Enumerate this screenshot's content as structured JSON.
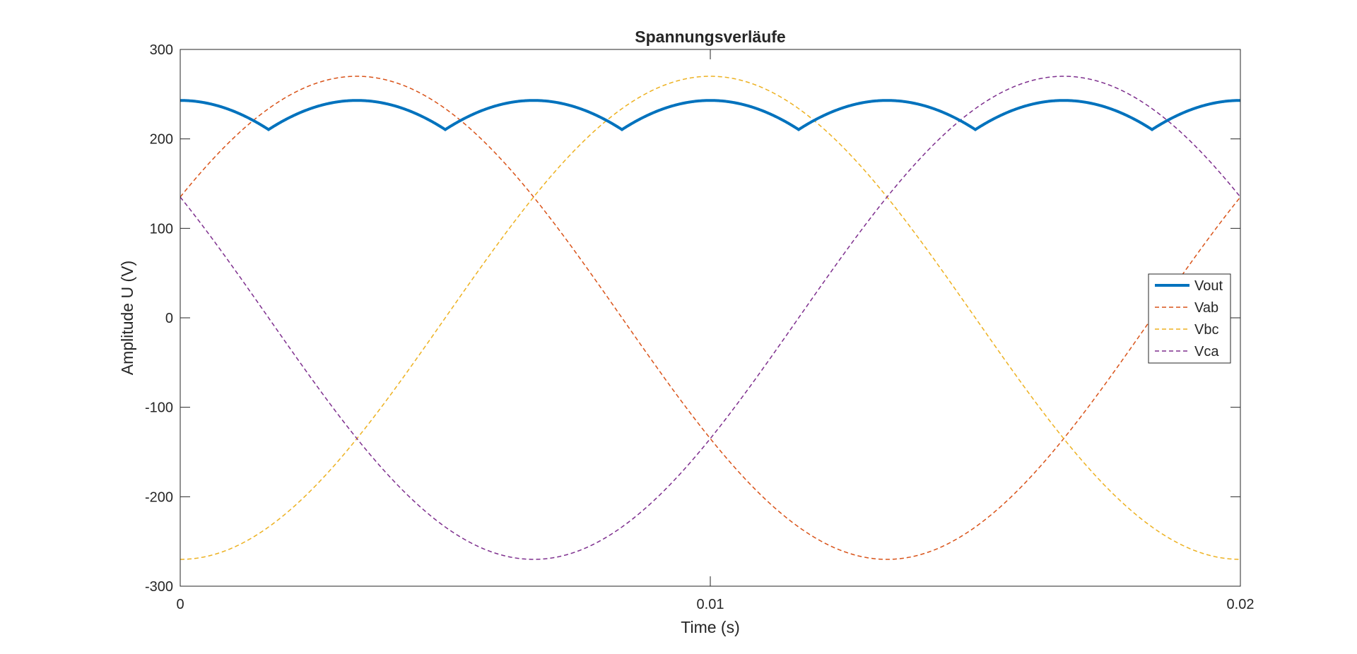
{
  "chart_data": {
    "type": "line",
    "title": "Spannungsverläufe",
    "xlabel": "Time (s)",
    "ylabel": "Amplitude U (V)",
    "xlim": [
      0,
      0.02
    ],
    "ylim": [
      -300,
      300
    ],
    "xticks": [
      0,
      0.01,
      0.02
    ],
    "xtick_labels": [
      "0",
      "0.01",
      "0.02"
    ],
    "yticks": [
      300,
      200,
      100,
      0,
      -100,
      -200,
      -300
    ],
    "ytick_labels": [
      "300",
      "200",
      "100",
      "0",
      "-100",
      "-200",
      "-300"
    ],
    "grid": false,
    "legend_position": "right",
    "series": [
      {
        "name": "Vout",
        "color": "#0072BD",
        "style": "solid",
        "width": "thick",
        "x": [
          0,
          0.000833,
          0.001667,
          0.0025,
          0.003333,
          0.004167,
          0.005,
          0.005833,
          0.006667,
          0.0075,
          0.008333,
          0.009167,
          0.01,
          0.010833,
          0.011667,
          0.0125,
          0.013333,
          0.014167,
          0.015,
          0.015833,
          0.016667,
          0.0175,
          0.018333,
          0.019167,
          0.02
        ],
        "values": [
          236,
          245,
          236,
          245,
          236,
          245,
          236,
          245,
          236,
          245,
          236,
          245,
          236,
          245,
          236,
          245,
          236,
          245,
          236,
          245,
          236,
          245,
          236,
          245,
          236
        ]
      },
      {
        "name": "Vab",
        "color": "#D95319",
        "style": "dashed",
        "width": "thin",
        "x": [
          0,
          0.001667,
          0.003333,
          0.005,
          0.006667,
          0.008333,
          0.01,
          0.011667,
          0.013333,
          0.015,
          0.016667,
          0.018333,
          0.02
        ],
        "values": [
          135,
          234,
          270,
          234,
          135,
          0,
          -135,
          -234,
          -270,
          -234,
          -135,
          0,
          135
        ]
      },
      {
        "name": "Vbc",
        "color": "#EDB120",
        "style": "dashed",
        "width": "thin",
        "x": [
          0,
          0.001667,
          0.003333,
          0.005,
          0.006667,
          0.008333,
          0.01,
          0.011667,
          0.013333,
          0.015,
          0.016667,
          0.018333,
          0.02
        ],
        "values": [
          -270,
          -234,
          -135,
          0,
          135,
          234,
          270,
          234,
          135,
          0,
          -135,
          -234,
          -270
        ]
      },
      {
        "name": "Vca",
        "color": "#7E2F8E",
        "style": "dashed",
        "width": "thin",
        "x": [
          0,
          0.001667,
          0.003333,
          0.005,
          0.006667,
          0.008333,
          0.01,
          0.011667,
          0.013333,
          0.015,
          0.016667,
          0.018333,
          0.02
        ],
        "values": [
          135,
          0,
          -135,
          -234,
          -270,
          -234,
          -135,
          0,
          135,
          234,
          270,
          234,
          135
        ]
      }
    ]
  }
}
